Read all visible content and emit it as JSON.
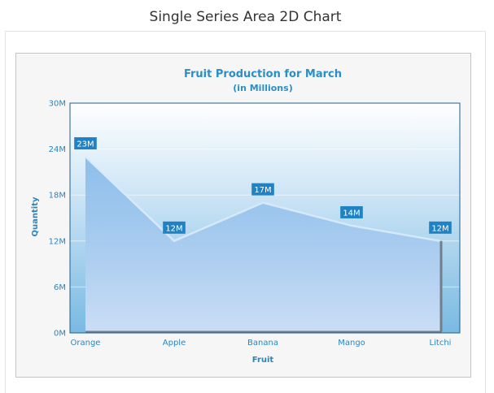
{
  "page": {
    "title": "Single Series Area 2D Chart"
  },
  "colors": {
    "accent": "#2a8ec8",
    "area_fill": "#a8cdf2",
    "plot_background": "#8fc6ea",
    "label_background": "#1f82c4"
  },
  "chart_data": {
    "type": "area",
    "title": "Fruit Production for March",
    "subtitle": "(in Millions)",
    "xlabel": "Fruit",
    "ylabel": "Quantity",
    "categories": [
      "Orange",
      "Apple",
      "Banana",
      "Mango",
      "Litchi"
    ],
    "values": [
      23,
      12,
      17,
      14,
      12
    ],
    "data_labels": [
      "23M",
      "12M",
      "17M",
      "14M",
      "12M"
    ],
    "ylim": [
      0,
      30
    ],
    "yticks": [
      0,
      6,
      12,
      18,
      24,
      30
    ],
    "ytick_labels": [
      "0M",
      "6M",
      "12M",
      "18M",
      "24M",
      "30M"
    ],
    "grid": true,
    "legend": "none"
  }
}
